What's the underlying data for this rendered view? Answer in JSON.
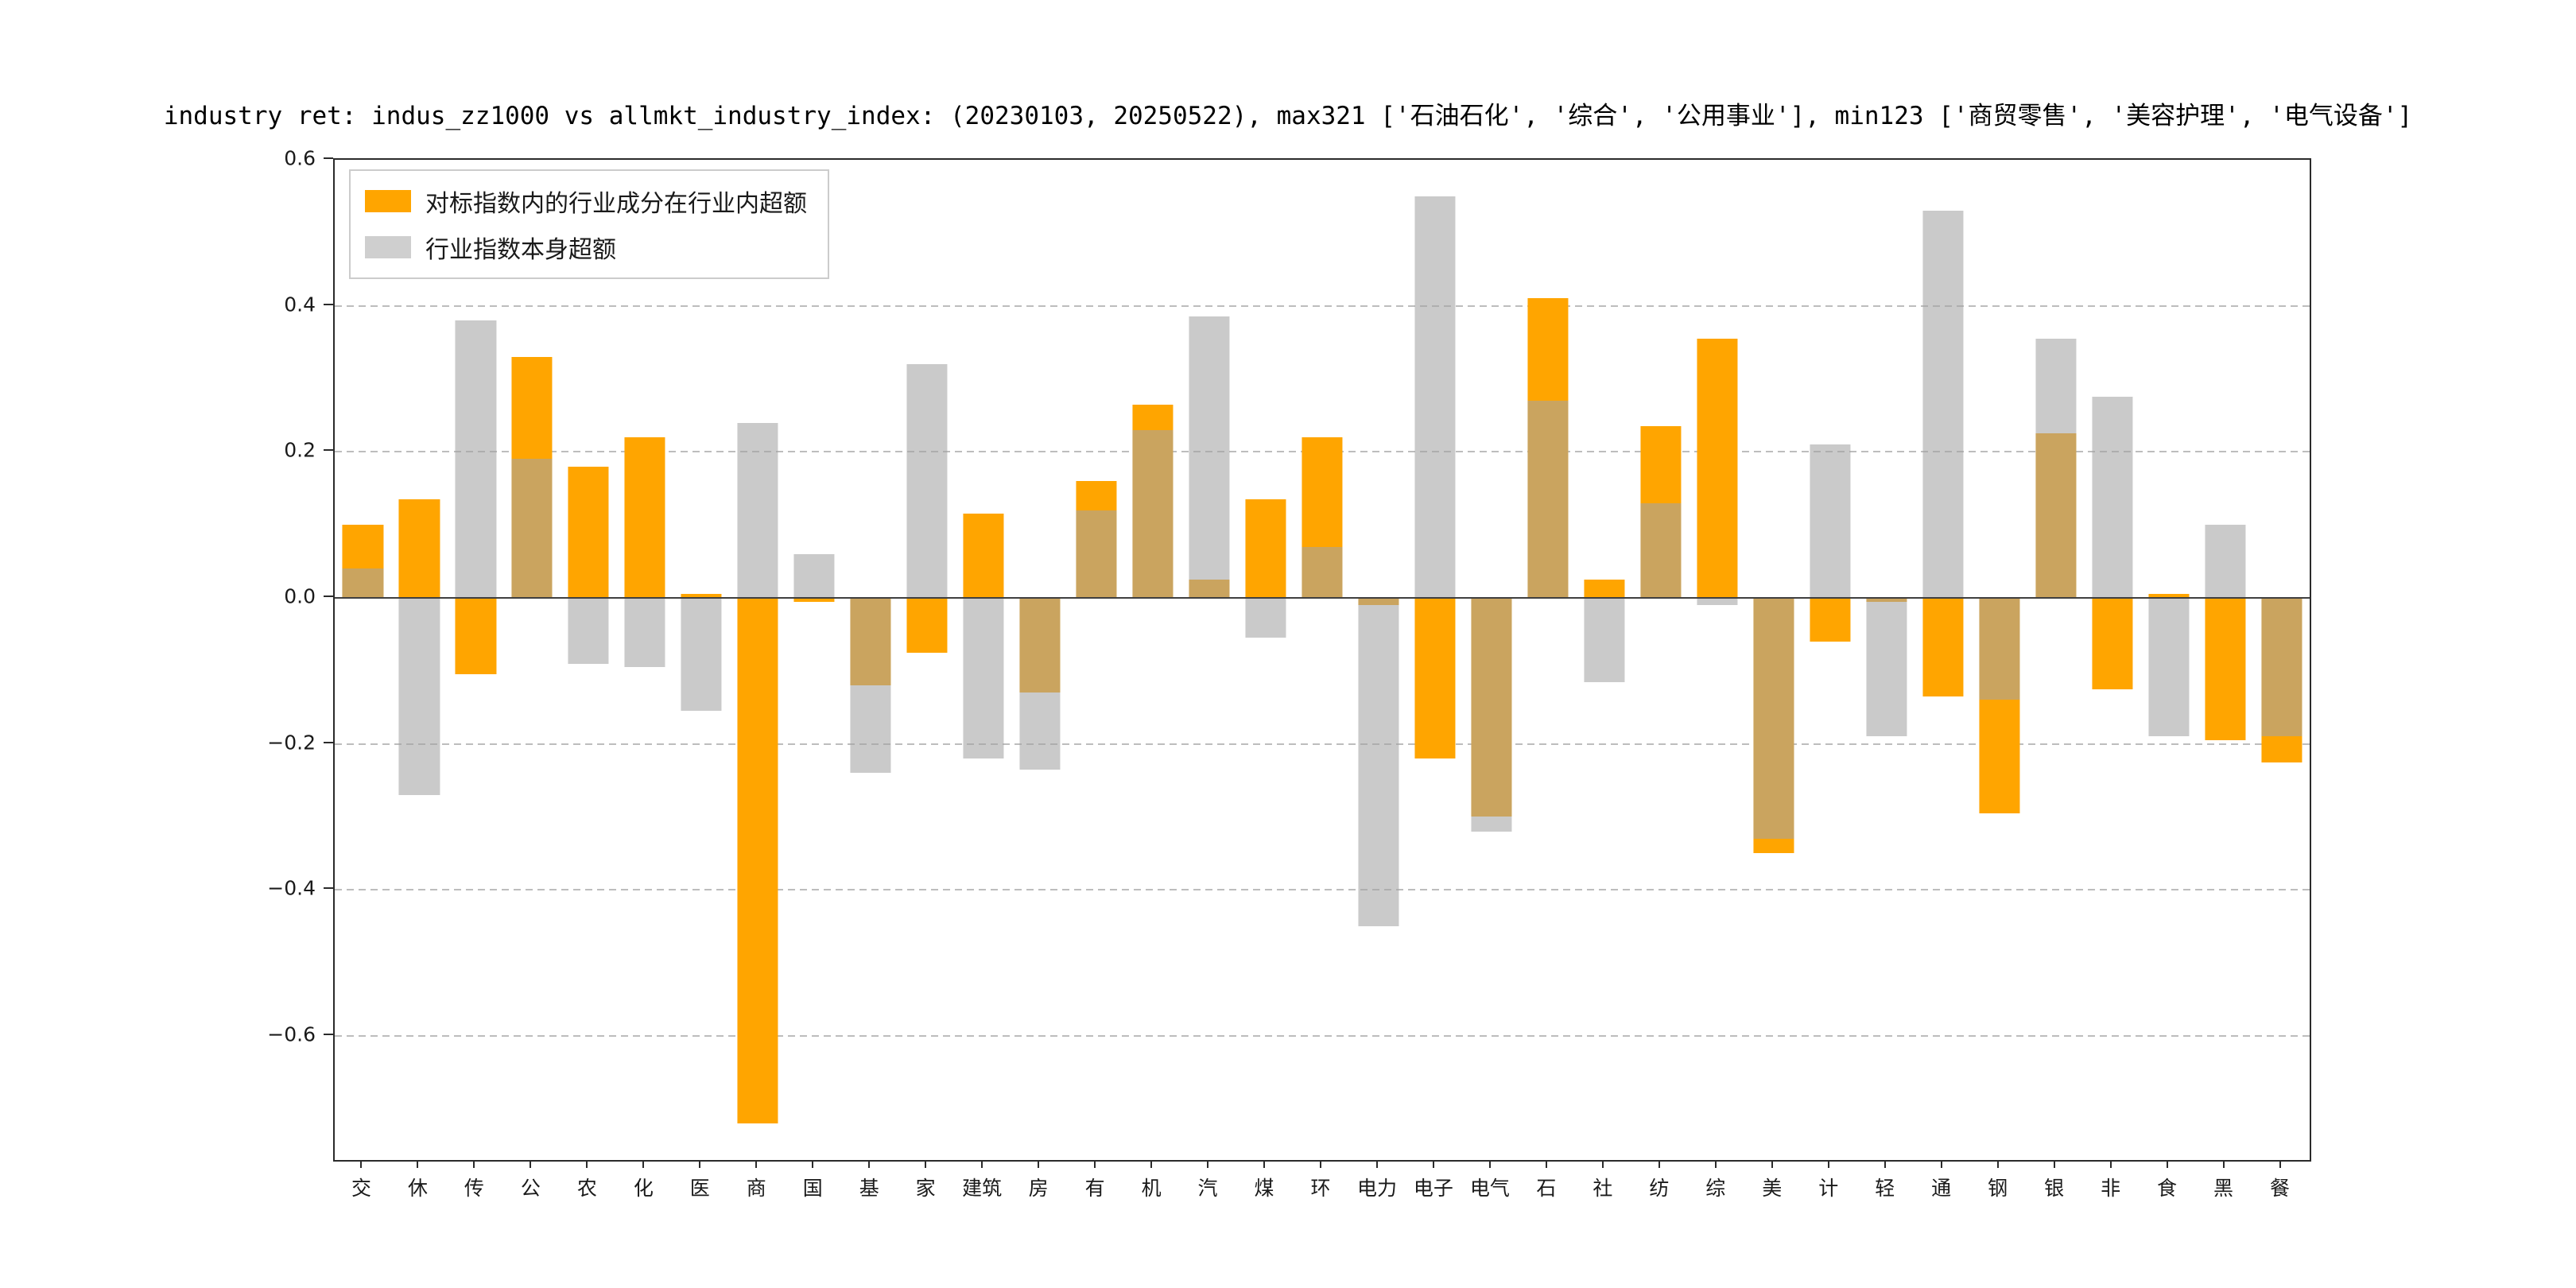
{
  "chart_data": {
    "type": "bar",
    "title": "industry ret: indus_zz1000 vs allmkt_industry_index: (20230103, 20250522), max321 ['石油石化', '综合', '公用事业'], min123 ['商贸零售', '美容护理', '电气设备']",
    "categories": [
      "交",
      "休",
      "传",
      "公",
      "农",
      "化",
      "医",
      "商",
      "国",
      "基",
      "家",
      "建筑",
      "房",
      "有",
      "机",
      "汽",
      "煤",
      "环",
      "电力",
      "电子",
      "电气",
      "石",
      "社",
      "纺",
      "综",
      "美",
      "计",
      "轻",
      "通",
      "钢",
      "银",
      "非",
      "食",
      "黑",
      "餐"
    ],
    "series": [
      {
        "name": "对标指数内的行业成分在行业内超额",
        "color": "#FFA500",
        "values": [
          0.1,
          0.135,
          -0.105,
          0.33,
          0.18,
          0.22,
          0.005,
          -0.72,
          -0.005,
          -0.12,
          -0.075,
          0.115,
          -0.13,
          0.16,
          0.265,
          0.025,
          0.135,
          0.22,
          -0.01,
          -0.22,
          -0.3,
          0.41,
          0.025,
          0.235,
          0.355,
          -0.35,
          -0.06,
          -0.005,
          -0.135,
          -0.295,
          0.225,
          -0.125,
          0.005,
          -0.195,
          -0.225
        ]
      },
      {
        "name": "行业指数本身超额",
        "color": "#CFCFCF",
        "values": [
          0.04,
          -0.27,
          0.38,
          0.19,
          -0.09,
          -0.095,
          -0.155,
          0.24,
          0.06,
          -0.24,
          0.32,
          -0.22,
          -0.235,
          0.12,
          0.23,
          0.385,
          -0.055,
          0.07,
          -0.45,
          0.55,
          -0.32,
          0.27,
          -0.115,
          0.13,
          -0.01,
          -0.33,
          0.21,
          -0.19,
          0.53,
          -0.14,
          0.355,
          0.275,
          -0.19,
          0.1,
          -0.19
        ]
      }
    ],
    "y_ticks": [
      0.6,
      0.4,
      0.2,
      0.0,
      -0.2,
      -0.4,
      -0.6
    ],
    "ylim": [
      -0.77,
      0.6
    ],
    "xlabel": "",
    "ylabel": "",
    "grid": "horizontal-dashed",
    "legend_position": "upper-left"
  }
}
